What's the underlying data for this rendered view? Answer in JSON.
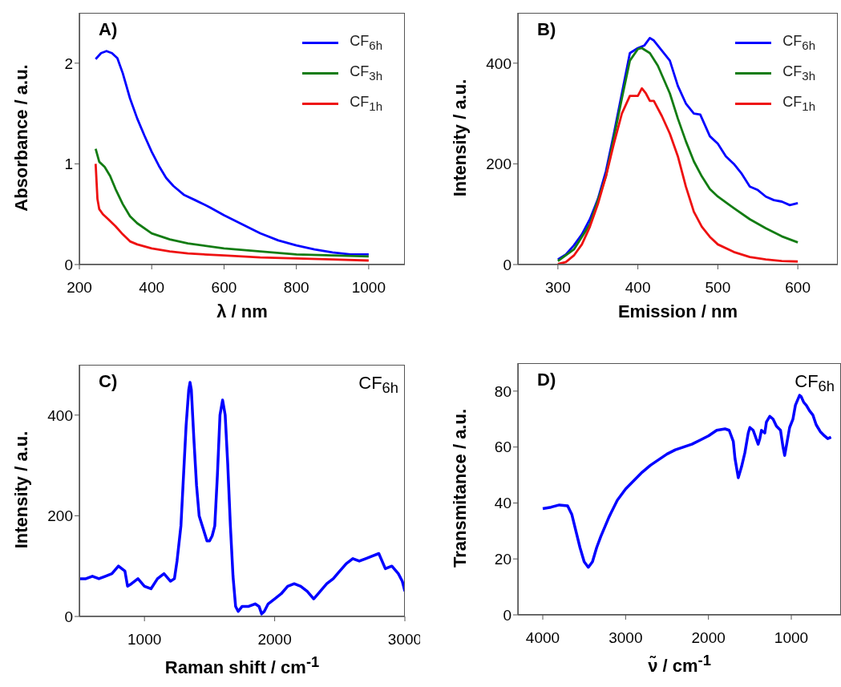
{
  "chart_data": [
    {
      "type": "line",
      "title": "A)",
      "xlabel": "λ / nm",
      "ylabel": "Absorbance / a.u.",
      "xlim": [
        200,
        1100
      ],
      "xticks": [
        200,
        400,
        600,
        800,
        1000
      ],
      "ylim": [
        0,
        2.5
      ],
      "yticks": [
        0,
        1,
        2
      ],
      "legend": "top right",
      "series": [
        {
          "name": "CF$_{6h}$",
          "color": "#0000ff",
          "x": [
            245,
            260,
            275,
            290,
            305,
            320,
            340,
            360,
            380,
            400,
            420,
            440,
            460,
            490,
            520,
            560,
            600,
            650,
            700,
            750,
            800,
            850,
            900,
            950,
            1000
          ],
          "values": [
            2.04,
            2.1,
            2.12,
            2.1,
            2.05,
            1.9,
            1.65,
            1.45,
            1.28,
            1.12,
            0.98,
            0.86,
            0.78,
            0.69,
            0.64,
            0.57,
            0.49,
            0.4,
            0.31,
            0.24,
            0.19,
            0.15,
            0.12,
            0.1,
            0.1
          ]
        },
        {
          "name": "CF$_{3h}$",
          "color": "#137c13",
          "x": [
            245,
            255,
            270,
            285,
            300,
            320,
            340,
            360,
            400,
            450,
            500,
            600,
            700,
            800,
            900,
            1000
          ],
          "values": [
            1.15,
            1.02,
            0.97,
            0.88,
            0.75,
            0.6,
            0.48,
            0.41,
            0.31,
            0.25,
            0.21,
            0.16,
            0.13,
            0.1,
            0.09,
            0.08
          ]
        },
        {
          "name": "CF$_{1h}$",
          "color": "#ee1111",
          "x": [
            245,
            250,
            255,
            265,
            280,
            300,
            320,
            340,
            360,
            400,
            450,
            500,
            600,
            700,
            800,
            900,
            1000
          ],
          "values": [
            1.0,
            0.65,
            0.55,
            0.5,
            0.45,
            0.38,
            0.3,
            0.23,
            0.2,
            0.16,
            0.13,
            0.11,
            0.09,
            0.07,
            0.06,
            0.05,
            0.04
          ]
        }
      ]
    },
    {
      "type": "line",
      "title": "B)",
      "xlabel": "Emission / nm",
      "ylabel": "Intensity / a.u.",
      "xlim": [
        250,
        650
      ],
      "xticks": [
        300,
        400,
        500,
        600
      ],
      "ylim": [
        0,
        500
      ],
      "yticks": [
        0,
        200,
        400
      ],
      "legend": "top right",
      "series": [
        {
          "name": "CF$_{6h}$",
          "color": "#0000ff",
          "x": [
            300,
            310,
            320,
            330,
            340,
            350,
            360,
            370,
            380,
            390,
            400,
            408,
            415,
            420,
            430,
            440,
            450,
            460,
            470,
            478,
            490,
            500,
            510,
            520,
            530,
            540,
            550,
            560,
            570,
            580,
            590,
            600
          ],
          "values": [
            10,
            20,
            38,
            60,
            90,
            130,
            185,
            260,
            340,
            420,
            430,
            435,
            450,
            445,
            425,
            405,
            355,
            320,
            300,
            298,
            255,
            240,
            215,
            200,
            180,
            155,
            148,
            135,
            128,
            125,
            118,
            122
          ]
        },
        {
          "name": "CF$_{3h}$",
          "color": "#137c13",
          "x": [
            300,
            320,
            340,
            360,
            380,
            390,
            400,
            405,
            415,
            425,
            440,
            450,
            460,
            470,
            480,
            490,
            500,
            520,
            540,
            560,
            580,
            600
          ],
          "values": [
            7,
            30,
            80,
            175,
            330,
            405,
            428,
            430,
            420,
            395,
            340,
            290,
            245,
            205,
            175,
            150,
            135,
            112,
            90,
            72,
            56,
            44
          ]
        },
        {
          "name": "CF$_{1h}$",
          "color": "#ee1111",
          "x": [
            300,
            310,
            320,
            330,
            340,
            350,
            360,
            370,
            380,
            390,
            396,
            400,
            405,
            410,
            415,
            420,
            430,
            440,
            450,
            460,
            470,
            480,
            490,
            500,
            520,
            540,
            560,
            580,
            600
          ],
          "values": [
            1,
            5,
            18,
            40,
            75,
            120,
            175,
            240,
            300,
            335,
            335,
            335,
            350,
            340,
            325,
            325,
            295,
            260,
            215,
            155,
            105,
            75,
            55,
            40,
            25,
            15,
            10,
            7,
            6
          ]
        }
      ]
    },
    {
      "type": "line",
      "title": "C)",
      "xlabel": "Raman shift / cm$^{-1}$",
      "ylabel": "Intensity / a.u.",
      "xlim": [
        500,
        3000
      ],
      "xticks": [
        1000,
        2000,
        3000
      ],
      "ylim": [
        0,
        500
      ],
      "yticks": [
        0,
        200,
        400
      ],
      "series": [
        {
          "name": "CF$_{6h}$",
          "color": "#0000ff",
          "x": [
            500,
            550,
            600,
            650,
            700,
            750,
            800,
            850,
            870,
            900,
            950,
            1000,
            1050,
            1100,
            1150,
            1200,
            1230,
            1250,
            1280,
            1300,
            1320,
            1340,
            1350,
            1360,
            1380,
            1400,
            1420,
            1450,
            1480,
            1500,
            1520,
            1540,
            1560,
            1580,
            1600,
            1620,
            1640,
            1660,
            1680,
            1700,
            1720,
            1750,
            1800,
            1850,
            1880,
            1900,
            1920,
            1950,
            2000,
            2050,
            2100,
            2150,
            2200,
            2250,
            2300,
            2350,
            2400,
            2450,
            2500,
            2550,
            2600,
            2650,
            2700,
            2750,
            2800,
            2850,
            2900,
            2950,
            2980,
            3000
          ],
          "values": [
            75,
            75,
            80,
            75,
            80,
            85,
            100,
            90,
            60,
            65,
            75,
            60,
            55,
            75,
            85,
            70,
            75,
            110,
            180,
            280,
            380,
            450,
            465,
            450,
            350,
            260,
            200,
            175,
            150,
            150,
            160,
            180,
            280,
            400,
            430,
            400,
            300,
            180,
            80,
            20,
            10,
            20,
            20,
            25,
            20,
            5,
            10,
            25,
            35,
            45,
            60,
            65,
            60,
            50,
            35,
            50,
            65,
            75,
            90,
            105,
            115,
            110,
            115,
            120,
            125,
            95,
            100,
            85,
            70,
            50
          ]
        }
      ]
    },
    {
      "type": "line",
      "title": "D)",
      "xlabel": "ν̃ / cm$^{-1}$",
      "ylabel": "Transmitance / a.u.",
      "xlim": [
        4300,
        400
      ],
      "xticks": [
        4000,
        3000,
        2000,
        1000
      ],
      "ylim": [
        0,
        90
      ],
      "yticks": [
        0,
        20,
        40,
        60,
        80
      ],
      "series": [
        {
          "name": "CF$_{6h}$",
          "color": "#0000ff",
          "x": [
            4000,
            3900,
            3800,
            3700,
            3650,
            3600,
            3550,
            3500,
            3450,
            3400,
            3350,
            3300,
            3200,
            3100,
            3000,
            2900,
            2800,
            2700,
            2600,
            2500,
            2400,
            2300,
            2200,
            2100,
            2000,
            1900,
            1800,
            1750,
            1700,
            1680,
            1640,
            1600,
            1560,
            1520,
            1500,
            1460,
            1400,
            1380,
            1360,
            1320,
            1300,
            1260,
            1220,
            1180,
            1130,
            1100,
            1080,
            1050,
            1020,
            980,
            950,
            900,
            880,
            850,
            820,
            780,
            740,
            700,
            650,
            600,
            560,
            520
          ],
          "values": [
            38,
            38.5,
            39.3,
            39,
            36,
            30,
            24,
            19,
            17,
            19,
            24,
            28,
            35,
            41,
            45,
            48,
            51,
            53.5,
            55.5,
            57.5,
            59,
            60,
            61,
            62.5,
            64,
            66,
            66.5,
            66,
            62,
            56,
            49,
            53,
            58,
            65,
            67,
            66,
            61,
            63,
            66,
            65,
            69,
            71,
            70,
            67.5,
            66,
            60,
            57,
            62,
            67,
            70,
            75,
            78.5,
            78,
            76,
            75,
            73,
            71.5,
            68,
            65.5,
            64,
            63,
            63.5
          ]
        }
      ]
    }
  ]
}
